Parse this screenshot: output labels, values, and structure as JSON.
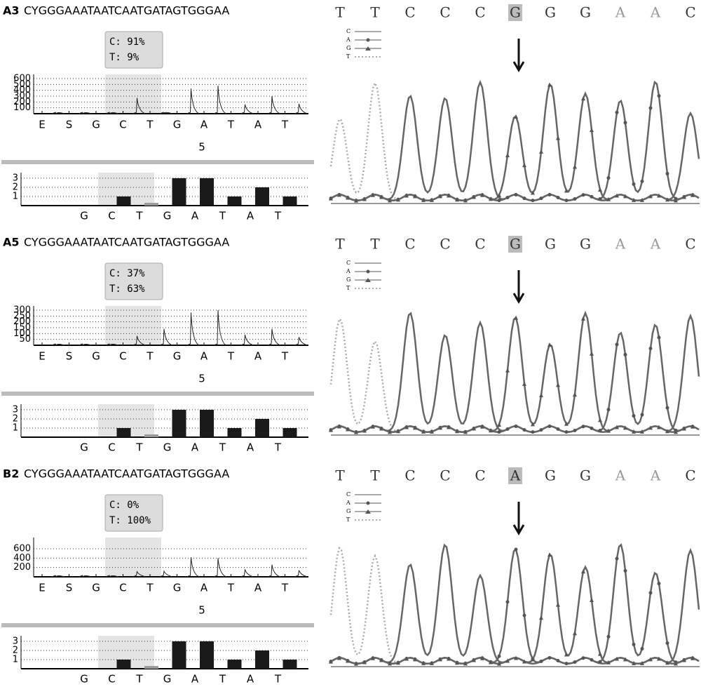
{
  "panels": [
    {
      "label": "A3",
      "sequence": "CYGGGAAATAATCAATGATAGTGGGAA",
      "pyro": {
        "box": [
          "C: 91%",
          "T: 9%"
        ],
        "ylim": [
          0,
          600
        ],
        "yticks": [
          100,
          200,
          300,
          400,
          500,
          600
        ],
        "dispensation": [
          "E",
          "S",
          "G",
          "C",
          "T",
          "G",
          "A",
          "T",
          "A",
          "T"
        ],
        "peaks": [
          0,
          0,
          0,
          270,
          10,
          430,
          480,
          160,
          300,
          170
        ],
        "position": "5"
      },
      "histogram": {
        "ylim": [
          0,
          3.3
        ],
        "yticks": [
          1,
          2,
          3
        ],
        "bases": [
          "G",
          "C",
          "T",
          "G",
          "A",
          "T",
          "A",
          "T"
        ],
        "values": [
          0,
          1,
          0.3,
          3,
          3,
          1,
          2,
          1
        ]
      },
      "chromatogram": {
        "bases": [
          "T",
          "T",
          "C",
          "C",
          "C",
          "G",
          "G",
          "G",
          "A",
          "A",
          "C"
        ],
        "legend": [
          "C",
          "A",
          "G",
          "T"
        ]
      }
    },
    {
      "label": "A5",
      "sequence": "CYGGGAAATAATCAATGATAGTGGGAA",
      "pyro": {
        "box": [
          "C: 37%",
          "T: 63%"
        ],
        "ylim": [
          0,
          300
        ],
        "yticks": [
          50,
          100,
          150,
          200,
          250,
          300
        ],
        "dispensation": [
          "E",
          "S",
          "G",
          "C",
          "T",
          "G",
          "A",
          "T",
          "A",
          "T"
        ],
        "peaks": [
          0,
          0,
          0,
          80,
          140,
          280,
          300,
          90,
          140,
          70
        ],
        "position": "5"
      },
      "histogram": {
        "ylim": [
          0,
          3.3
        ],
        "yticks": [
          1,
          2,
          3
        ],
        "bases": [
          "G",
          "C",
          "T",
          "G",
          "A",
          "T",
          "A",
          "T"
        ],
        "values": [
          0,
          1,
          0.3,
          3,
          3,
          1,
          2,
          1
        ]
      },
      "chromatogram": {
        "bases": [
          "T",
          "T",
          "C",
          "C",
          "C",
          "G",
          "G",
          "G",
          "A",
          "A",
          "C"
        ],
        "legend": [
          "C",
          "A",
          "G",
          "T"
        ]
      }
    },
    {
      "label": "B2",
      "sequence": "CYGGGAAATAATCAATGATAGTGGGAA",
      "pyro": {
        "box": [
          "C: 0%",
          "T: 100%"
        ],
        "ylim": [
          0,
          750
        ],
        "yticks": [
          200,
          400,
          600
        ],
        "dispensation": [
          "E",
          "S",
          "G",
          "C",
          "T",
          "G",
          "A",
          "T",
          "A",
          "T"
        ],
        "peaks": [
          0,
          0,
          0,
          110,
          120,
          420,
          400,
          160,
          260,
          140
        ],
        "position": "5"
      },
      "histogram": {
        "ylim": [
          0,
          3.3
        ],
        "yticks": [
          1,
          2,
          3
        ],
        "bases": [
          "G",
          "C",
          "T",
          "G",
          "A",
          "T",
          "A",
          "T"
        ],
        "values": [
          0,
          1,
          0.3,
          3,
          3,
          1,
          2,
          1
        ]
      },
      "chromatogram": {
        "bases": [
          "T",
          "T",
          "C",
          "C",
          "C",
          "A",
          "G",
          "G",
          "A",
          "A",
          "C"
        ],
        "legend": [
          "C",
          "A",
          "G",
          "T"
        ]
      }
    }
  ]
}
